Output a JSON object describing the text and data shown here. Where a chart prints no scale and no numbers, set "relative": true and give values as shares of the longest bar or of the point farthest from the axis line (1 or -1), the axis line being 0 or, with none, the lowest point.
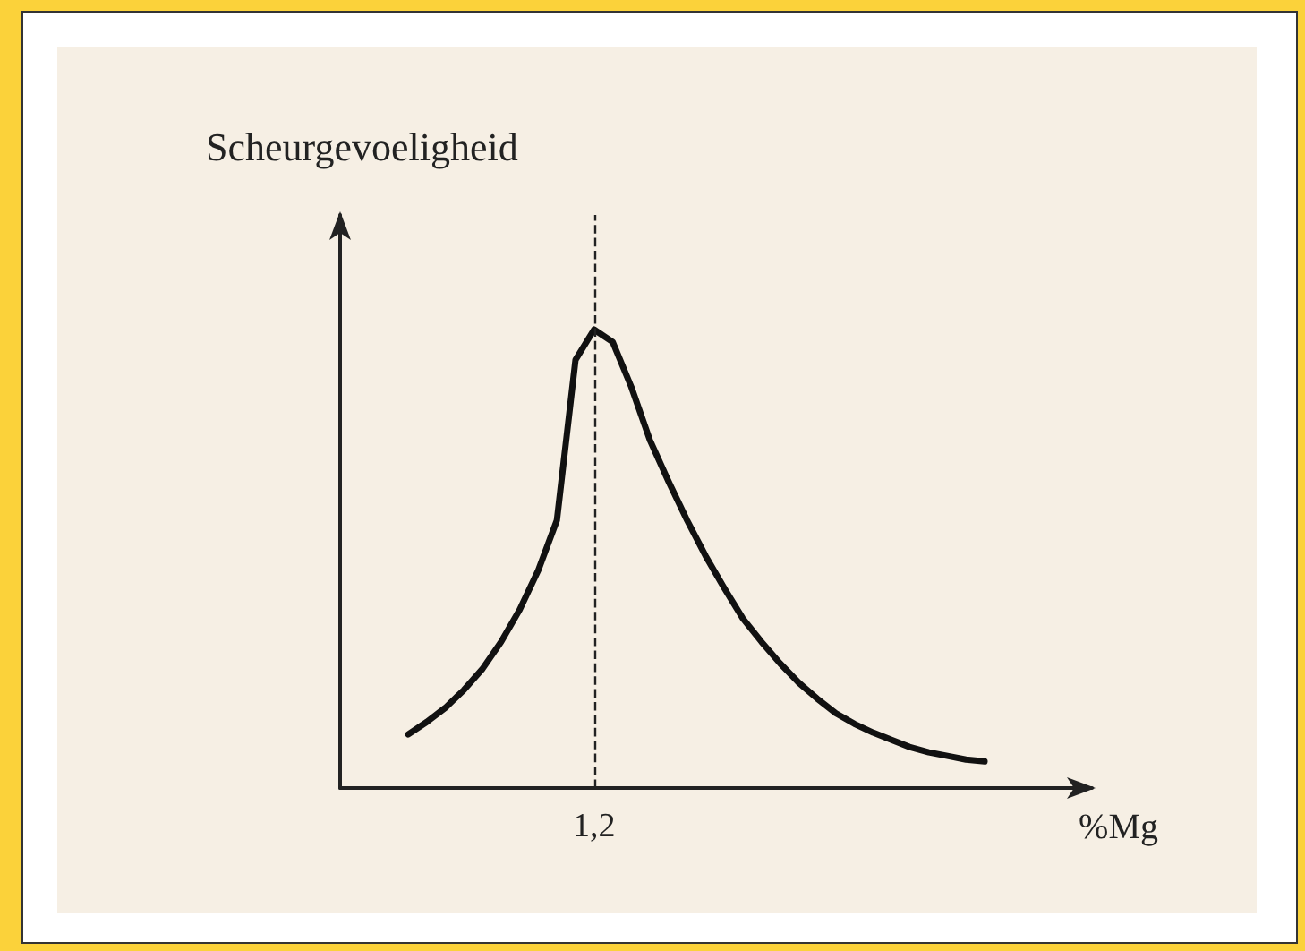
{
  "chart_data": {
    "type": "line",
    "relative": true,
    "ylabel": "Scheurgevoeligheid",
    "xlabel": "%Mg",
    "categories": [
      null,
      null,
      null,
      null,
      null,
      null,
      null,
      null,
      null,
      null,
      null,
      null,
      null,
      null,
      null,
      null,
      null,
      null,
      null,
      null,
      null,
      null,
      null,
      null,
      null,
      null,
      null,
      null,
      null,
      null,
      null,
      null
    ],
    "series": [
      {
        "color": "#111111",
        "values": [
          0.117,
          0.144,
          0.175,
          0.214,
          0.26,
          0.319,
          0.389,
          0.475,
          0.584,
          0.934,
          1,
          0.973,
          0.875,
          0.759,
          0.669,
          0.584,
          0.506,
          0.436,
          0.37,
          0.319,
          0.272,
          0.23,
          0.195,
          0.163,
          0.14,
          0.121,
          0.105,
          0.089,
          0.078,
          0.07,
          0.062,
          0.058
        ]
      }
    ],
    "ref_lines": [
      {
        "axis": "x",
        "value": "1,2",
        "color": "#222222",
        "line_style": "dashed"
      }
    ],
    "grid": false,
    "marker": "none",
    "line_style": "solid"
  }
}
